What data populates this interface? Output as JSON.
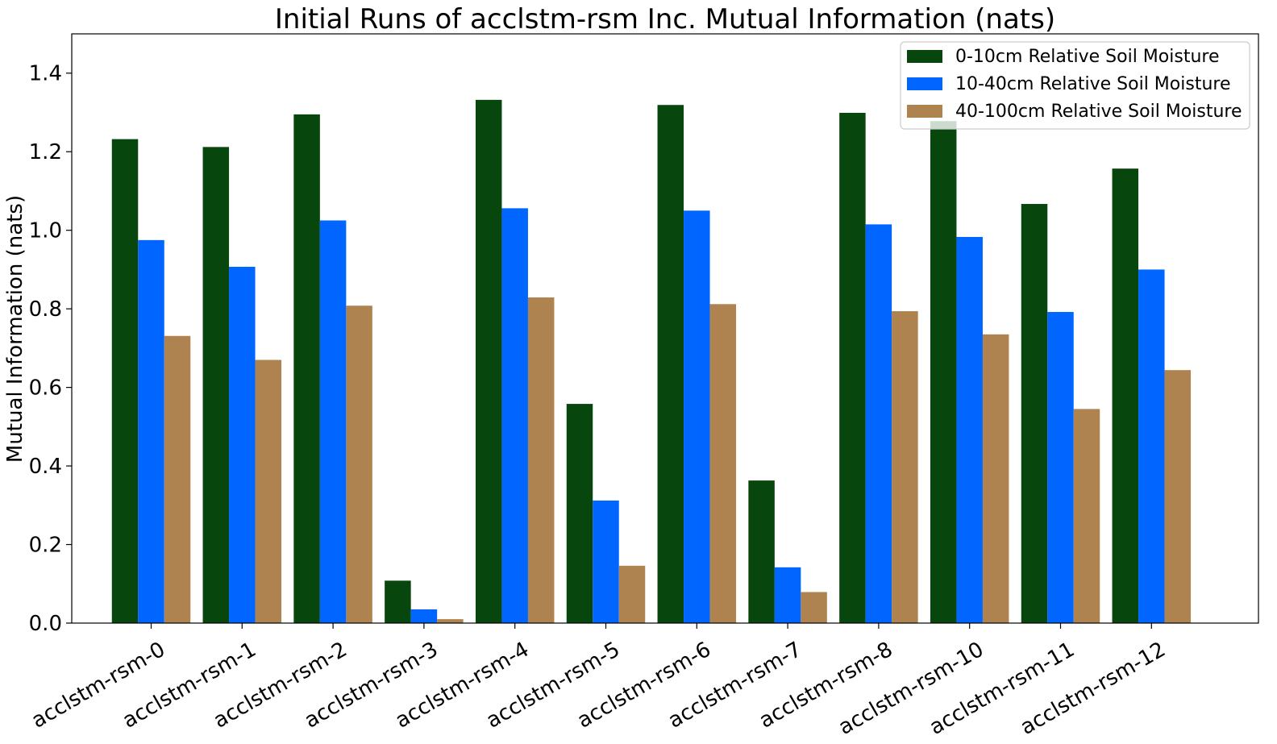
{
  "chart_data": {
    "type": "bar",
    "title": "Initial Runs of acclstm-rsm Inc. Mutual Information (nats)",
    "xlabel": "",
    "ylabel": "Mutual Information (nats)",
    "ylim": [
      0,
      1.5
    ],
    "yticks": [
      "0.0",
      "0.2",
      "0.4",
      "0.6",
      "0.8",
      "1.0",
      "1.2",
      "1.4"
    ],
    "ytick_values": [
      0.0,
      0.2,
      0.4,
      0.6,
      0.8,
      1.0,
      1.2,
      1.4
    ],
    "categories": [
      "acclstm-rsm-0",
      "acclstm-rsm-1",
      "acclstm-rsm-2",
      "acclstm-rsm-3",
      "acclstm-rsm-4",
      "acclstm-rsm-5",
      "acclstm-rsm-6",
      "acclstm-rsm-7",
      "acclstm-rsm-8",
      "acclstm-rsm-10",
      "acclstm-rsm-11",
      "acclstm-rsm-12"
    ],
    "series": [
      {
        "name": "0-10cm Relative Soil Moisture",
        "color": "#07470d",
        "values": [
          1.232,
          1.212,
          1.295,
          0.108,
          1.332,
          0.558,
          1.319,
          0.363,
          1.299,
          1.278,
          1.067,
          1.157
        ]
      },
      {
        "name": "10-40cm Relative Soil Moisture",
        "color": "#0066ff",
        "values": [
          0.975,
          0.907,
          1.025,
          0.035,
          1.056,
          0.312,
          1.05,
          0.142,
          1.015,
          0.983,
          0.792,
          0.9
        ]
      },
      {
        "name": "40-100cm Relative Soil Moisture",
        "color": "#ae8350",
        "values": [
          0.731,
          0.67,
          0.808,
          0.01,
          0.829,
          0.146,
          0.812,
          0.079,
          0.794,
          0.735,
          0.545,
          0.644
        ]
      }
    ],
    "legend_position": "top-right",
    "grid": false
  }
}
